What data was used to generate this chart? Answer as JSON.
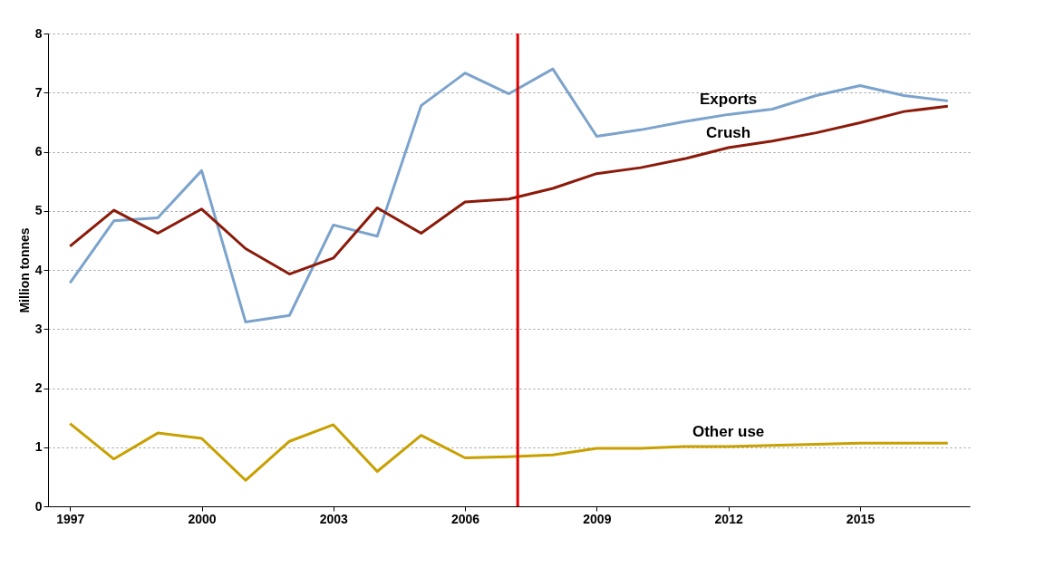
{
  "chart_data": {
    "type": "line",
    "ylabel": "Million tonnes",
    "x": [
      1997,
      1998,
      1999,
      2000,
      2001,
      2002,
      2003,
      2004,
      2005,
      2006,
      2007,
      2008,
      2009,
      2010,
      2011,
      2012,
      2013,
      2014,
      2015,
      2016,
      2017
    ],
    "xlim": [
      1996.5,
      2017.5
    ],
    "xticks": [
      1997,
      2000,
      2003,
      2006,
      2009,
      2012,
      2015
    ],
    "ylim": [
      0,
      8
    ],
    "yticks": [
      0,
      1,
      2,
      3,
      4,
      5,
      6,
      7,
      8
    ],
    "grid": "y",
    "legend": false,
    "marker": "none",
    "line_style": "solid",
    "series": [
      {
        "name": "Exports",
        "color": "#7ba3cc",
        "values": [
          3.78,
          4.83,
          4.88,
          5.68,
          3.12,
          3.23,
          4.76,
          4.57,
          6.78,
          7.33,
          6.98,
          7.4,
          6.26,
          6.37,
          6.51,
          6.63,
          6.72,
          6.95,
          7.12,
          6.95,
          6.86
        ]
      },
      {
        "name": "Crush",
        "color": "#8b1a0a",
        "values": [
          4.4,
          5.01,
          4.62,
          5.03,
          4.36,
          3.93,
          4.2,
          5.05,
          4.62,
          5.15,
          5.2,
          5.38,
          5.63,
          5.73,
          5.88,
          6.07,
          6.18,
          6.32,
          6.49,
          6.68,
          6.77
        ]
      },
      {
        "name": "Other use",
        "color": "#c8a000",
        "values": [
          1.4,
          0.8,
          1.24,
          1.15,
          0.44,
          1.1,
          1.38,
          0.59,
          1.2,
          0.82,
          0.84,
          0.87,
          0.98,
          0.98,
          1.01,
          1.01,
          1.03,
          1.05,
          1.07,
          1.07,
          1.07
        ]
      }
    ],
    "ref_lines": [
      {
        "axis": "x",
        "value": 2007.2,
        "label": null,
        "color": "#e00000"
      }
    ]
  }
}
